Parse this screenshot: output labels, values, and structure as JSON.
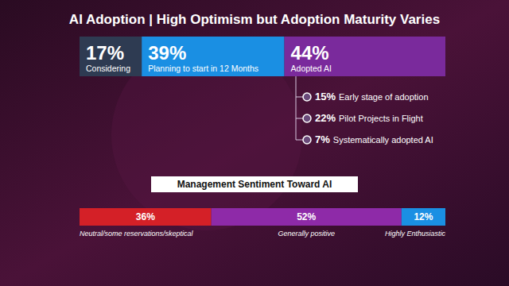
{
  "chart_data": [
    {
      "type": "bar",
      "title": "AI Adoption | High Optimism but Adoption Maturity Varies",
      "orientation": "horizontal",
      "stacked": true,
      "data_labels": true,
      "tick_labels": false,
      "xlim": [
        0,
        100
      ],
      "series": [
        {
          "name": "Considering",
          "color": "#2e3b52",
          "values": [
            17
          ],
          "value_labels": [
            "17%"
          ]
        },
        {
          "name": "Planning to start in 12 Months",
          "color": "#1a8fe3",
          "values": [
            39
          ],
          "value_labels": [
            "39%"
          ]
        },
        {
          "name": "Adopted AI",
          "color": "#7a2a9c",
          "values": [
            44
          ],
          "value_labels": [
            "44%"
          ]
        }
      ]
    },
    {
      "type": "list",
      "categories": [
        "Early stage of adoption",
        "Pilot Projects in Flight",
        "Systematically adopted AI"
      ],
      "values": [
        15,
        22,
        7
      ],
      "value_labels": [
        "15%",
        "22%",
        "7%"
      ]
    },
    {
      "type": "bar",
      "title": "Management Sentiment Toward AI",
      "orientation": "horizontal",
      "stacked": true,
      "data_labels": true,
      "tick_labels": false,
      "xlim": [
        0,
        100
      ],
      "series": [
        {
          "name": "Neutral/some reservations/skeptical",
          "color": "#d42027",
          "values": [
            36
          ],
          "value_labels": [
            "36%"
          ]
        },
        {
          "name": "Generally positive",
          "color": "#8e2aa8",
          "values": [
            52
          ],
          "value_labels": [
            "52%"
          ]
        },
        {
          "name": "Highly Enthusiastic",
          "color": "#1a8fe3",
          "values": [
            12
          ],
          "value_labels": [
            "12%"
          ]
        }
      ]
    }
  ]
}
